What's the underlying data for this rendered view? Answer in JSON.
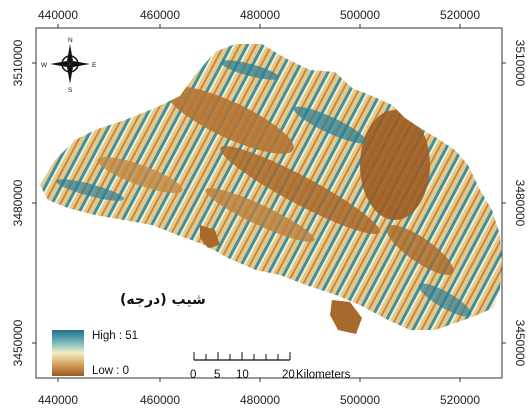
{
  "map": {
    "x_ticks": [
      "440000",
      "460000",
      "480000",
      "500000",
      "520000"
    ],
    "y_ticks": [
      "3510000",
      "3480000",
      "3450000"
    ],
    "legend": {
      "title": "شیب (درجه)",
      "high_label": "High : 51",
      "low_label": "Low : 0",
      "colors": [
        "#1f6f8b",
        "#6fb3b8",
        "#f3ecc4",
        "#d4a15a",
        "#9a5a22"
      ]
    },
    "scale_bar": {
      "ticks": [
        "0",
        "5",
        "10",
        "20"
      ],
      "units": "Kilometers"
    },
    "north_arrow": {
      "n": "N",
      "s": "S",
      "e": "E",
      "w": "W"
    }
  }
}
